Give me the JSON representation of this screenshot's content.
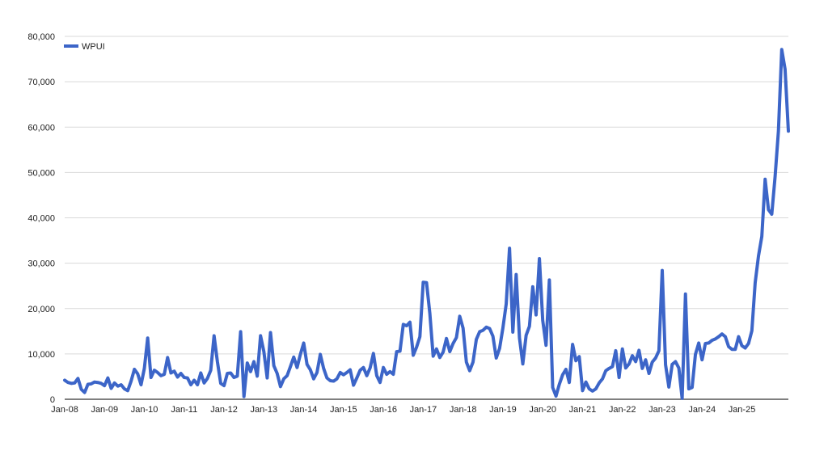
{
  "chart_data": {
    "type": "line",
    "title": "",
    "xlabel": "",
    "ylabel": "",
    "ylim": [
      0,
      80000
    ],
    "y_ticks": [
      0,
      10000,
      20000,
      30000,
      40000,
      50000,
      60000,
      70000,
      80000
    ],
    "y_tick_labels": [
      "0",
      "10,000",
      "20,000",
      "30,000",
      "40,000",
      "50,000",
      "60,000",
      "70,000",
      "80,000"
    ],
    "x_tick_labels": [
      "Jan-08",
      "Jan-09",
      "Jan-10",
      "Jan-11",
      "Jan-12",
      "Jan-13",
      "Jan-14",
      "Jan-15",
      "Jan-16",
      "Jan-17",
      "Jan-18",
      "Jan-19",
      "Jan-20",
      "Jan-21",
      "Jan-22",
      "Jan-23",
      "Jan-24",
      "Jan-25"
    ],
    "grid": true,
    "legend_position": "top-left",
    "series": [
      {
        "name": "WPUI",
        "color": "#3c65c8",
        "values": [
          4200,
          3700,
          3500,
          3600,
          4600,
          2200,
          1500,
          3300,
          3400,
          3800,
          3700,
          3500,
          3000,
          4700,
          2400,
          3600,
          2900,
          3200,
          2300,
          1900,
          4000,
          6600,
          5600,
          3200,
          6800,
          13500,
          4800,
          6400,
          5900,
          5200,
          5500,
          9200,
          5800,
          6200,
          4900,
          5700,
          4800,
          4700,
          3200,
          4200,
          3200,
          5800,
          3600,
          4600,
          6400,
          14000,
          8300,
          3500,
          3000,
          5700,
          5800,
          4800,
          5100,
          14900,
          600,
          8000,
          6100,
          8300,
          5100,
          14000,
          10500,
          4700,
          14700,
          7400,
          5700,
          2800,
          4500,
          5200,
          7200,
          9300,
          7000,
          9900,
          12400,
          7700,
          6500,
          4500,
          5900,
          9900,
          6800,
          4700,
          4100,
          4000,
          4500,
          5900,
          5400,
          5900,
          6500,
          3100,
          4700,
          6400,
          7000,
          5200,
          6900,
          10100,
          5200,
          3700,
          7000,
          5500,
          6100,
          5500,
          10500,
          10600,
          16500,
          16200,
          17000,
          9700,
          11500,
          13800,
          25800,
          25700,
          18900,
          9500,
          11100,
          9200,
          10400,
          13400,
          10500,
          12300,
          13600,
          18300,
          15700,
          8200,
          6300,
          8200,
          13200,
          14900,
          15200,
          15900,
          15600,
          13900,
          9100,
          11200,
          15700,
          21000,
          33300,
          14800,
          27500,
          13500,
          7800,
          14100,
          16100,
          24800,
          18600,
          31000,
          17400,
          11900,
          26300,
          2600,
          700,
          3300,
          5400,
          6600,
          3700,
          12100,
          8500,
          9400,
          1900,
          3800,
          2300,
          1800,
          2300,
          3600,
          4500,
          6300,
          6800,
          7200,
          10700,
          4800,
          11100,
          6900,
          7800,
          9600,
          8300,
          10800,
          6800,
          8700,
          5700,
          8200,
          9100,
          10700,
          28400,
          7600,
          2700,
          7700,
          8300,
          6900,
          200,
          23200,
          2300,
          2600,
          9900,
          12400,
          8700,
          12300,
          12400,
          13000,
          13300,
          13800,
          14400,
          13800,
          11600,
          11000,
          11000,
          13800,
          11800,
          11300,
          12300,
          15100,
          25700,
          31600,
          35900,
          48500,
          41800,
          40800,
          49100,
          59100,
          77100,
          72800,
          59100
        ]
      }
    ]
  }
}
